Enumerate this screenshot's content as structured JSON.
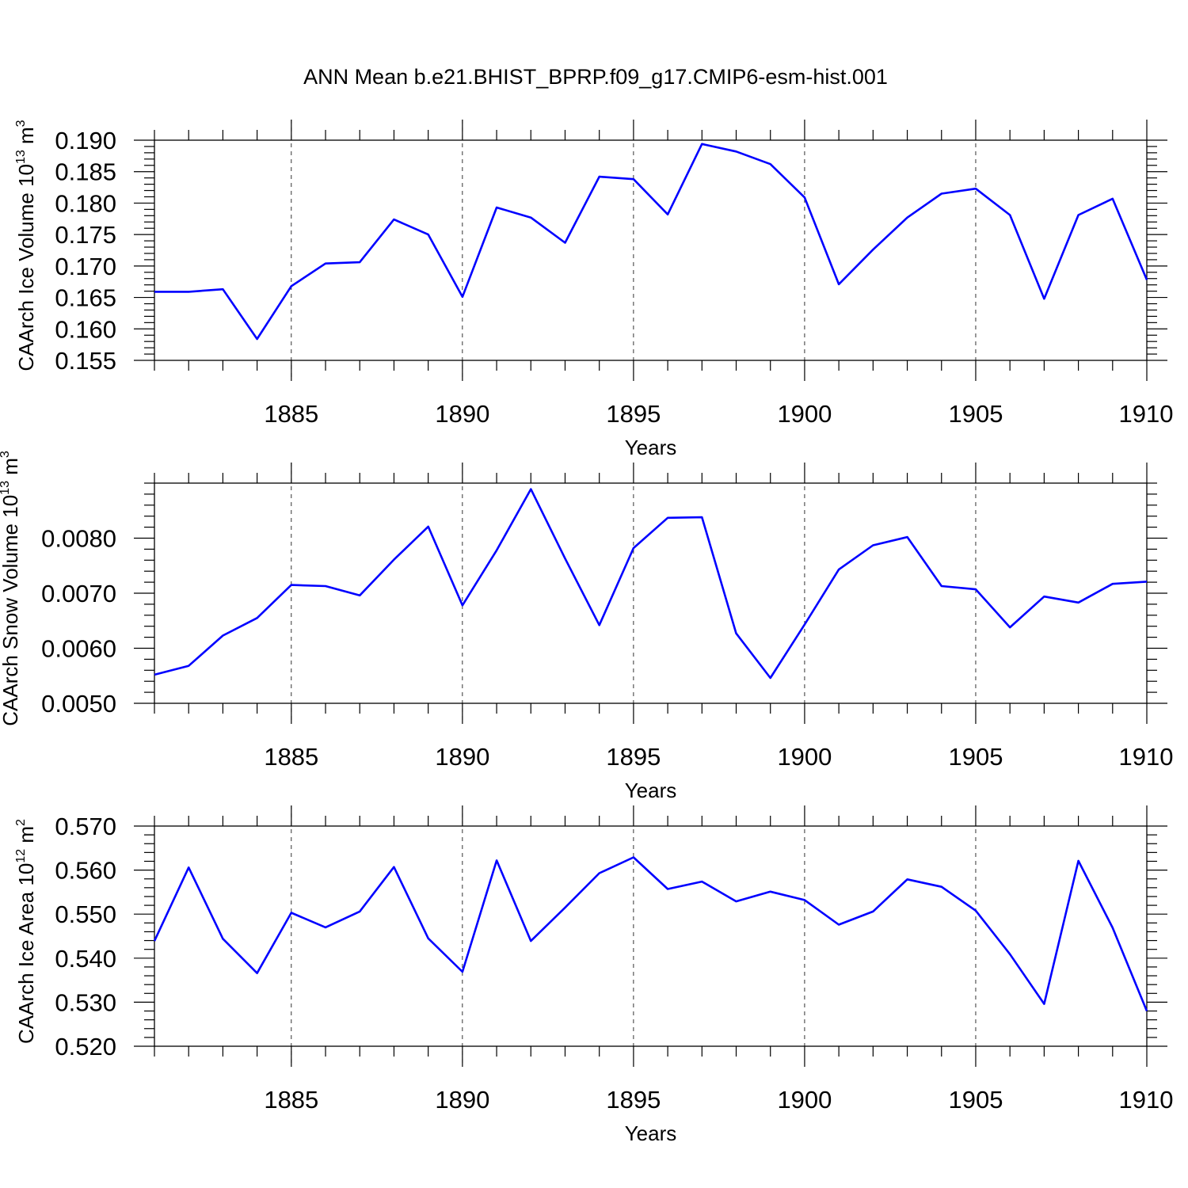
{
  "chart_data": {
    "title": "ANN Mean b.e21.BHIST_BPRP.f09_g17.CMIP6-esm-hist.001",
    "panels": [
      {
        "type": "line",
        "ylabel": "CAArch Ice Volume 10",
        "ylabel_exp": "13",
        "ylabel_unit": " m",
        "ylabel_unit_exp": "3",
        "xlabel": "Years",
        "xlim": [
          1881,
          1910
        ],
        "ylim": [
          0.155,
          0.19
        ],
        "yticks": [
          0.155,
          0.16,
          0.165,
          0.17,
          0.175,
          0.18,
          0.185,
          0.19
        ],
        "ytick_labels": [
          "0.155",
          "0.160",
          "0.165",
          "0.170",
          "0.175",
          "0.180",
          "0.185",
          "0.190"
        ],
        "x": [
          1881,
          1882,
          1883,
          1884,
          1885,
          1886,
          1887,
          1888,
          1889,
          1890,
          1891,
          1892,
          1893,
          1894,
          1895,
          1896,
          1897,
          1898,
          1899,
          1900,
          1901,
          1902,
          1903,
          1904,
          1905,
          1906,
          1907,
          1908,
          1909,
          1910
        ],
        "values": [
          0.1659,
          0.1659,
          0.1663,
          0.1584,
          0.1668,
          0.1704,
          0.1706,
          0.1774,
          0.175,
          0.1651,
          0.1793,
          0.1777,
          0.1737,
          0.1842,
          0.1838,
          0.1782,
          0.1894,
          0.1882,
          0.1862,
          0.1809,
          0.1671,
          0.1726,
          0.1777,
          0.1815,
          0.1823,
          0.1781,
          0.1648,
          0.1781,
          0.1807,
          0.1678
        ]
      },
      {
        "type": "line",
        "ylabel": "CAArch Snow Volume 10",
        "ylabel_exp": "13",
        "ylabel_unit": " m",
        "ylabel_unit_exp": "3",
        "xlabel": "Years",
        "xlim": [
          1881,
          1910
        ],
        "ylim": [
          0.005,
          0.009
        ],
        "yticks": [
          0.005,
          0.006,
          0.007,
          0.008
        ],
        "ytick_labels": [
          "0.0050",
          "0.0060",
          "0.0070",
          "0.0080"
        ],
        "x": [
          1881,
          1882,
          1883,
          1884,
          1885,
          1886,
          1887,
          1888,
          1889,
          1890,
          1891,
          1892,
          1893,
          1894,
          1895,
          1896,
          1897,
          1898,
          1899,
          1900,
          1901,
          1902,
          1903,
          1904,
          1905,
          1906,
          1907,
          1908,
          1909,
          1910
        ],
        "values": [
          0.00552,
          0.00568,
          0.00623,
          0.00655,
          0.00715,
          0.00713,
          0.00696,
          0.00761,
          0.00821,
          0.00678,
          0.00778,
          0.00889,
          0.00763,
          0.00642,
          0.00782,
          0.00837,
          0.00838,
          0.00627,
          0.00546,
          0.00643,
          0.00743,
          0.00787,
          0.00802,
          0.00713,
          0.00707,
          0.00638,
          0.00694,
          0.00683,
          0.00717,
          0.00721
        ]
      },
      {
        "type": "line",
        "ylabel": "CAArch Ice Area 10",
        "ylabel_exp": "12",
        "ylabel_unit": " m",
        "ylabel_unit_exp": "2",
        "xlabel": "Years",
        "xlim": [
          1881,
          1910
        ],
        "ylim": [
          0.52,
          0.57
        ],
        "yticks": [
          0.52,
          0.53,
          0.54,
          0.55,
          0.56,
          0.57
        ],
        "ytick_labels": [
          "0.520",
          "0.530",
          "0.540",
          "0.550",
          "0.560",
          "0.570"
        ],
        "x": [
          1881,
          1882,
          1883,
          1884,
          1885,
          1886,
          1887,
          1888,
          1889,
          1890,
          1891,
          1892,
          1893,
          1894,
          1895,
          1896,
          1897,
          1898,
          1899,
          1900,
          1901,
          1902,
          1903,
          1904,
          1905,
          1906,
          1907,
          1908,
          1909,
          1910
        ],
        "values": [
          0.5439,
          0.5606,
          0.5444,
          0.5366,
          0.5503,
          0.547,
          0.5506,
          0.5607,
          0.5445,
          0.5369,
          0.5622,
          0.5439,
          0.5515,
          0.5593,
          0.5629,
          0.5557,
          0.5574,
          0.5529,
          0.5551,
          0.5532,
          0.5476,
          0.5506,
          0.5579,
          0.5562,
          0.5508,
          0.5409,
          0.5296,
          0.5621,
          0.5469,
          0.528
        ]
      }
    ],
    "xticks": [
      1885,
      1890,
      1895,
      1900,
      1905,
      1910
    ],
    "xtick_labels": [
      "1885",
      "1890",
      "1895",
      "1900",
      "1905",
      "1910"
    ],
    "grid": "vertical dashed at major x ticks",
    "series_color": "#0000ff"
  }
}
